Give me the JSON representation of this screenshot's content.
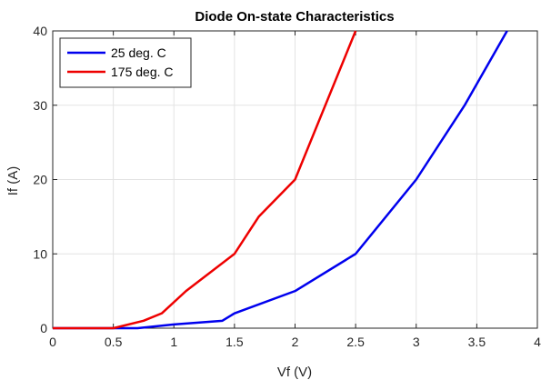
{
  "chart_data": {
    "type": "line",
    "title": "Diode On-state Characteristics",
    "xlabel": "Vf (V)",
    "ylabel": "If (A)",
    "xlim": [
      0,
      4
    ],
    "ylim": [
      0,
      40
    ],
    "xticks": [
      0,
      0.5,
      1,
      1.5,
      2,
      2.5,
      3,
      3.5,
      4
    ],
    "xtick_labels": [
      "0",
      "0.5",
      "1",
      "1.5",
      "2",
      "2.5",
      "3",
      "3.5",
      "4"
    ],
    "yticks": [
      0,
      10,
      20,
      30,
      40
    ],
    "ytick_labels": [
      "0",
      "10",
      "20",
      "30",
      "40"
    ],
    "grid": true,
    "legend_position": "top-left",
    "series": [
      {
        "name": "25 deg. C",
        "color": "#0000ee",
        "x": [
          0,
          0.5,
          0.7,
          1.0,
          1.4,
          1.5,
          2.0,
          2.5,
          3.0,
          3.4,
          3.75
        ],
        "y": [
          0,
          0,
          0,
          0.5,
          1,
          2,
          5,
          10,
          20,
          30,
          40
        ]
      },
      {
        "name": "175 deg. C",
        "color": "#ee0000",
        "x": [
          0,
          0.5,
          0.75,
          0.9,
          1.1,
          1.5,
          1.7,
          2.0,
          2.5
        ],
        "y": [
          0,
          0,
          1,
          2,
          5,
          10,
          15,
          20,
          40
        ]
      }
    ]
  }
}
